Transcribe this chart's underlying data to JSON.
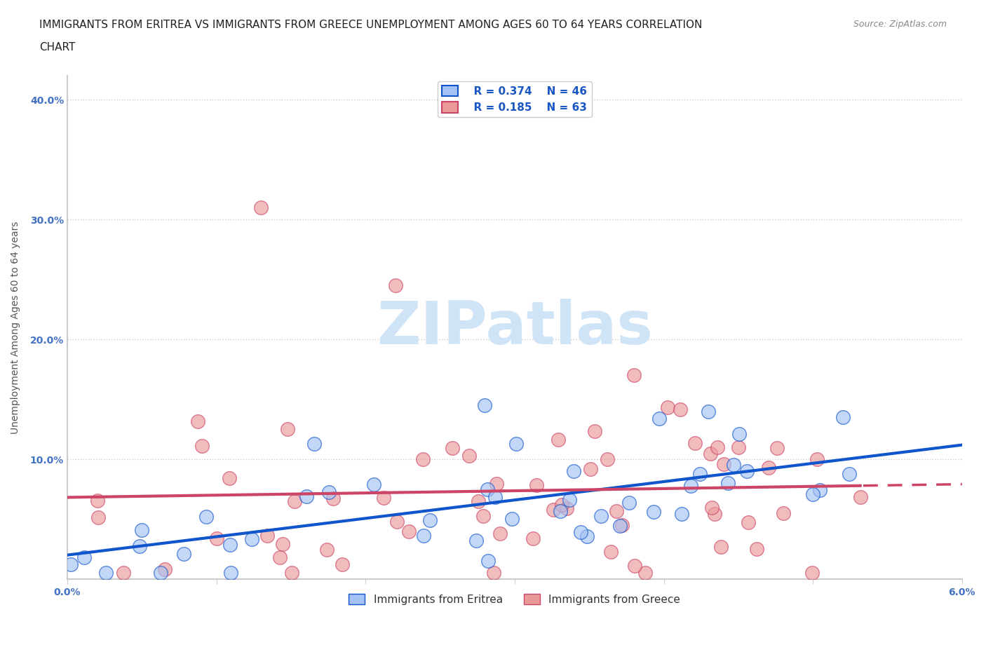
{
  "title_line1": "IMMIGRANTS FROM ERITREA VS IMMIGRANTS FROM GREECE UNEMPLOYMENT AMONG AGES 60 TO 64 YEARS CORRELATION",
  "title_line2": "CHART",
  "source_text": "Source: ZipAtlas.com",
  "ylabel": "Unemployment Among Ages 60 to 64 years",
  "xlim": [
    0.0,
    0.06
  ],
  "ylim": [
    0.0,
    0.42
  ],
  "legend_r_eritrea": "R = 0.374",
  "legend_n_eritrea": "N = 46",
  "legend_r_greece": "R = 0.185",
  "legend_n_greece": "N = 63",
  "eritrea_color": "#a4c2f4",
  "greece_color": "#ea9999",
  "eritrea_line_color": "#1155cc",
  "greece_line_color": "#cc4466",
  "watermark_color": "#d0e4f7",
  "background_color": "#ffffff",
  "grid_color": "#cccccc",
  "axis_color": "#cccccc",
  "tick_color": "#4472c4",
  "title_fontsize": 11,
  "axis_label_fontsize": 10,
  "tick_fontsize": 10
}
